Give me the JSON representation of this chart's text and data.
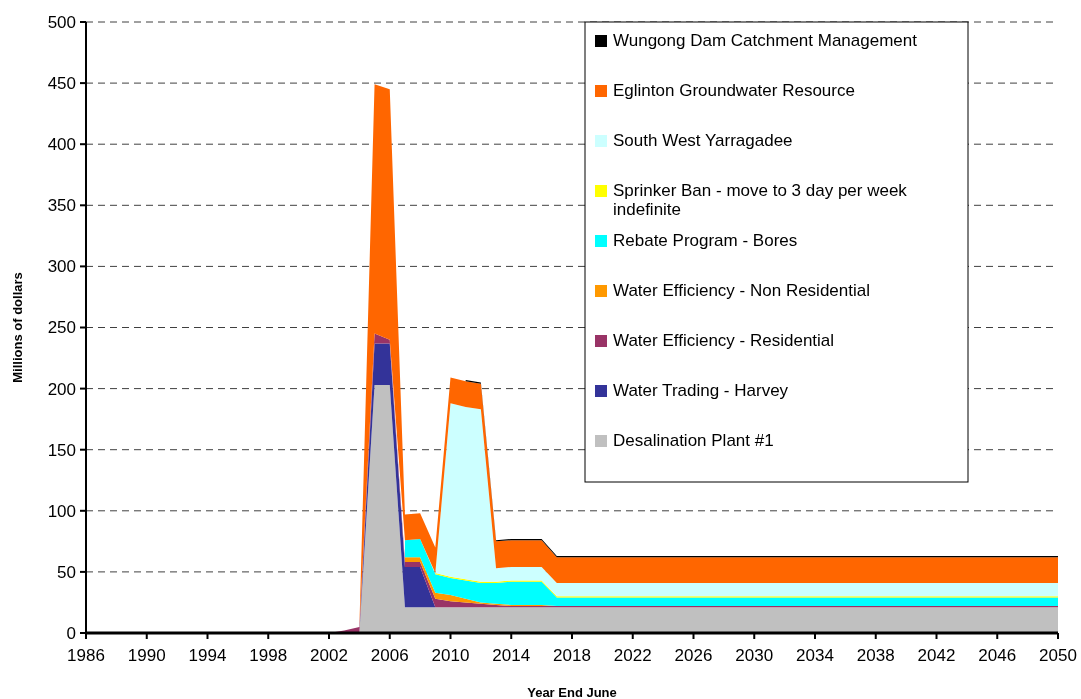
{
  "chart_data": {
    "type": "area",
    "stacked": true,
    "xlabel": "Year End June",
    "ylabel": "Millions of dollars",
    "x": [
      1986,
      1987,
      1988,
      1989,
      1990,
      1991,
      1992,
      1993,
      1994,
      1995,
      1996,
      1997,
      1998,
      1999,
      2000,
      2001,
      2002,
      2003,
      2004,
      2005,
      2006,
      2007,
      2008,
      2009,
      2010,
      2011,
      2012,
      2013,
      2014,
      2015,
      2016,
      2017,
      2018,
      2019,
      2020,
      2021,
      2022,
      2023,
      2024,
      2025,
      2026,
      2027,
      2028,
      2029,
      2030,
      2031,
      2032,
      2033,
      2034,
      2035,
      2036,
      2037,
      2038,
      2039,
      2040,
      2041,
      2042,
      2043,
      2044,
      2045,
      2046,
      2047,
      2048,
      2049,
      2050
    ],
    "series": [
      {
        "name": "Desalination Plant #1",
        "color": "#c0c0c0",
        "values": [
          0,
          0,
          0,
          0,
          0,
          0,
          0,
          0,
          0,
          0,
          0,
          0,
          0,
          0,
          0,
          0,
          0,
          0,
          0,
          203,
          203,
          21,
          21,
          21,
          21,
          21,
          21,
          21,
          21,
          21,
          21,
          21,
          21,
          21,
          21,
          21,
          21,
          21,
          21,
          21,
          21,
          21,
          21,
          21,
          21,
          21,
          21,
          21,
          21,
          21,
          21,
          21,
          21,
          21,
          21,
          21,
          21,
          21,
          21,
          21,
          21,
          21,
          21,
          21,
          21
        ]
      },
      {
        "name": "Water Trading - Harvey",
        "color": "#333399",
        "values": [
          0,
          0,
          0,
          0,
          0,
          0,
          0,
          0,
          0,
          0,
          0,
          0,
          0,
          0,
          0,
          0,
          0,
          0,
          0,
          34,
          34,
          33,
          33,
          0,
          0,
          0,
          0,
          0,
          0,
          0,
          0,
          0,
          0,
          0,
          0,
          0,
          0,
          0,
          0,
          0,
          0,
          0,
          0,
          0,
          0,
          0,
          0,
          0,
          0,
          0,
          0,
          0,
          0,
          0,
          0,
          0,
          0,
          0,
          0,
          0,
          0,
          0,
          0,
          0,
          0
        ]
      },
      {
        "name": "Water Efficiency - Residential",
        "color": "#993366",
        "values": [
          0,
          0,
          0,
          0,
          0,
          0,
          0,
          0,
          0,
          0,
          0,
          0,
          0,
          0,
          0,
          0,
          0,
          2,
          5,
          8,
          3,
          4,
          4,
          7,
          5,
          4,
          3,
          2,
          1,
          1,
          1,
          1,
          1,
          1,
          1,
          1,
          1,
          1,
          1,
          1,
          1,
          1,
          1,
          1,
          1,
          1,
          1,
          1,
          1,
          1,
          1,
          1,
          1,
          1,
          1,
          1,
          1,
          1,
          1,
          1,
          1,
          1,
          1,
          1,
          1
        ]
      },
      {
        "name": "Water Efficiency - Non Residential",
        "color": "#ff9900",
        "values": [
          null,
          null,
          null,
          null,
          null,
          null,
          null,
          null,
          null,
          null,
          null,
          null,
          null,
          null,
          null,
          null,
          null,
          null,
          null,
          null,
          null,
          4,
          4,
          5,
          5,
          3,
          1,
          1,
          1,
          1,
          1,
          0,
          0,
          0,
          0,
          0,
          0,
          0,
          0,
          0,
          0,
          0,
          0,
          0,
          0,
          0,
          0,
          0,
          0,
          0,
          0,
          0,
          0,
          0,
          0,
          0,
          0,
          0,
          0,
          0,
          0,
          0,
          0,
          0,
          0
        ]
      },
      {
        "name": "Rebate Program - Bores",
        "color": "#00ffff",
        "values": [
          null,
          null,
          null,
          null,
          null,
          null,
          null,
          null,
          null,
          null,
          null,
          null,
          null,
          null,
          null,
          null,
          null,
          null,
          null,
          null,
          null,
          14,
          15,
          15,
          14,
          15,
          16,
          17,
          19,
          19,
          19,
          7,
          7,
          7,
          7,
          7,
          7,
          7,
          7,
          7,
          7,
          7,
          7,
          7,
          7,
          7,
          7,
          7,
          7,
          7,
          7,
          7,
          7,
          7,
          7,
          7,
          7,
          7,
          7,
          7,
          7,
          7,
          7,
          7,
          7
        ]
      },
      {
        "name": "Sprinker Ban - move to 3 day per week indefinite",
        "color": "#ffff00",
        "values": [
          null,
          null,
          null,
          null,
          null,
          null,
          null,
          null,
          null,
          null,
          null,
          null,
          null,
          null,
          null,
          null,
          null,
          null,
          null,
          null,
          null,
          null,
          null,
          1,
          1,
          1,
          1,
          1,
          1,
          1,
          1,
          1,
          1,
          1,
          1,
          1,
          1,
          1,
          1,
          1,
          1,
          1,
          1,
          1,
          1,
          1,
          1,
          1,
          1,
          1,
          1,
          1,
          1,
          1,
          1,
          1,
          1,
          1,
          1,
          1,
          1,
          1,
          1,
          1,
          1
        ]
      },
      {
        "name": "South West Yarragadee",
        "color": "#ccffff",
        "values": [
          null,
          null,
          null,
          null,
          null,
          null,
          null,
          null,
          null,
          null,
          null,
          null,
          null,
          null,
          null,
          null,
          null,
          null,
          null,
          null,
          null,
          null,
          null,
          0,
          142,
          141,
          141,
          11,
          11,
          11,
          11,
          11,
          11,
          11,
          11,
          11,
          11,
          11,
          11,
          11,
          11,
          11,
          11,
          11,
          11,
          11,
          11,
          11,
          11,
          11,
          11,
          11,
          11,
          11,
          11,
          11,
          11,
          11,
          11,
          11,
          11,
          11,
          11,
          11,
          11
        ]
      },
      {
        "name": "Eglinton Groundwater Resource",
        "color": "#ff6600",
        "values": [
          0,
          0,
          0,
          0,
          0,
          0,
          0,
          0,
          0,
          0,
          0,
          0,
          0,
          0,
          0,
          0,
          0,
          0,
          0,
          204,
          205,
          21,
          21,
          21,
          21,
          21,
          21,
          22,
          22,
          22,
          22,
          21,
          21,
          21,
          21,
          21,
          21,
          21,
          21,
          21,
          21,
          21,
          21,
          21,
          21,
          21,
          21,
          21,
          21,
          21,
          21,
          21,
          21,
          21,
          21,
          21,
          21,
          21,
          21,
          21,
          21,
          21,
          21,
          21,
          21
        ]
      },
      {
        "name": "Wungong Dam Catchment Management",
        "color": "#000000",
        "values": [
          null,
          null,
          null,
          null,
          null,
          null,
          null,
          null,
          null,
          null,
          null,
          null,
          null,
          null,
          null,
          null,
          null,
          null,
          null,
          null,
          null,
          null,
          null,
          null,
          null,
          1,
          1,
          1,
          1,
          1,
          1,
          1,
          1,
          1,
          1,
          1,
          1,
          1,
          1,
          1,
          1,
          1,
          1,
          1,
          1,
          1,
          1,
          1,
          1,
          1,
          1,
          1,
          1,
          1,
          1,
          1,
          1,
          1,
          1,
          1,
          1,
          1,
          1,
          1,
          1
        ]
      }
    ],
    "xlim": [
      1986,
      2050
    ],
    "xticks": [
      1986,
      1990,
      1994,
      1998,
      2002,
      2006,
      2010,
      2014,
      2018,
      2022,
      2026,
      2030,
      2034,
      2038,
      2042,
      2046,
      2050
    ],
    "ylim": [
      0,
      500
    ],
    "yticks": [
      0,
      50,
      100,
      150,
      200,
      250,
      300,
      350,
      400,
      450,
      500
    ],
    "grid": "y",
    "legend": "top right"
  }
}
